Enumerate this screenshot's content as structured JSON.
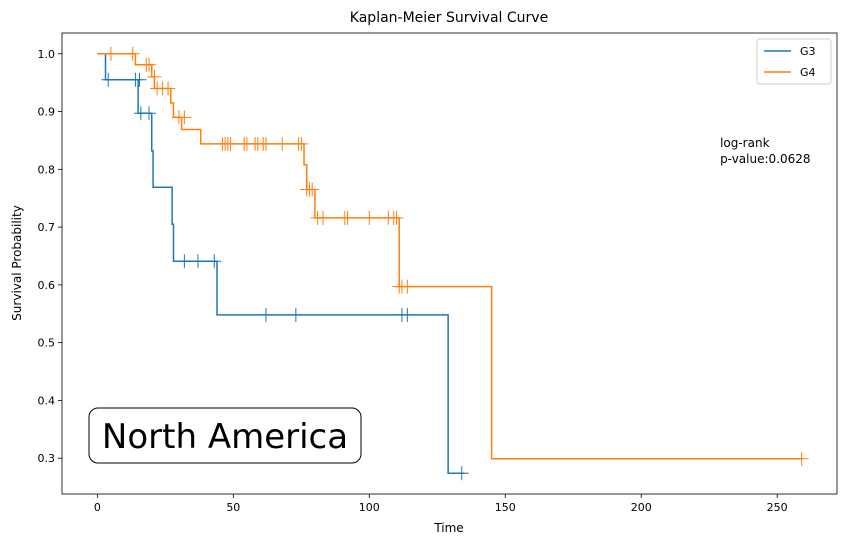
{
  "chart_data": {
    "type": "line",
    "title": "Kaplan-Meier Survival Curve",
    "xlabel": "Time",
    "ylabel": "Survival Probability",
    "xlim": [
      -13,
      272
    ],
    "ylim": [
      0.238,
      1.036
    ],
    "xticks": [
      {
        "value": 0,
        "label": "0"
      },
      {
        "value": 50,
        "label": "50"
      },
      {
        "value": 100,
        "label": "100"
      },
      {
        "value": 150,
        "label": "150"
      },
      {
        "value": 200,
        "label": "200"
      },
      {
        "value": 250,
        "label": "250"
      }
    ],
    "yticks": [
      {
        "value": 0.3,
        "label": "0.3"
      },
      {
        "value": 0.4,
        "label": "0.4"
      },
      {
        "value": 0.5,
        "label": "0.5"
      },
      {
        "value": 0.6,
        "label": "0.6"
      },
      {
        "value": 0.7,
        "label": "0.7"
      },
      {
        "value": 0.8,
        "label": "0.8"
      },
      {
        "value": 0.9,
        "label": "0.9"
      },
      {
        "value": 1.0,
        "label": "1.0"
      }
    ],
    "legend_position": "top-right",
    "grid": false,
    "series": [
      {
        "name": "G3",
        "color": "#1f77b4",
        "steps": [
          [
            0,
            1.0
          ],
          [
            3,
            0.955
          ],
          [
            15,
            0.897
          ],
          [
            20,
            0.832
          ],
          [
            20.5,
            0.769
          ],
          [
            27.5,
            0.705
          ],
          [
            28,
            0.641
          ],
          [
            44,
            0.548
          ],
          [
            129,
            0.274
          ],
          [
            135,
            0.274
          ]
        ],
        "censored": [
          [
            4,
            0.955
          ],
          [
            14,
            0.955
          ],
          [
            15.5,
            0.955
          ],
          [
            16,
            0.897
          ],
          [
            19,
            0.897
          ],
          [
            32,
            0.641
          ],
          [
            37,
            0.641
          ],
          [
            43,
            0.641
          ],
          [
            62,
            0.548
          ],
          [
            73,
            0.548
          ],
          [
            112,
            0.548
          ],
          [
            114,
            0.548
          ],
          [
            134,
            0.274
          ]
        ]
      },
      {
        "name": "G4",
        "color": "#ff7f0e",
        "steps": [
          [
            0,
            1.0
          ],
          [
            14,
            0.981
          ],
          [
            20,
            0.96
          ],
          [
            21,
            0.94
          ],
          [
            27,
            0.915
          ],
          [
            28,
            0.89
          ],
          [
            31,
            0.869
          ],
          [
            38,
            0.844
          ],
          [
            76,
            0.808
          ],
          [
            77,
            0.765
          ],
          [
            80,
            0.716
          ],
          [
            111,
            0.597
          ],
          [
            145,
            0.299
          ],
          [
            259,
            0.299
          ]
        ],
        "censored": [
          [
            5,
            1.0
          ],
          [
            13,
            1.0
          ],
          [
            18,
            0.981
          ],
          [
            19,
            0.981
          ],
          [
            21,
            0.96
          ],
          [
            22,
            0.94
          ],
          [
            24,
            0.94
          ],
          [
            26,
            0.94
          ],
          [
            30,
            0.89
          ],
          [
            32,
            0.89
          ],
          [
            46,
            0.844
          ],
          [
            47,
            0.844
          ],
          [
            48,
            0.844
          ],
          [
            49,
            0.844
          ],
          [
            54,
            0.844
          ],
          [
            55,
            0.844
          ],
          [
            58,
            0.844
          ],
          [
            59,
            0.844
          ],
          [
            61,
            0.844
          ],
          [
            62,
            0.844
          ],
          [
            68,
            0.844
          ],
          [
            74,
            0.844
          ],
          [
            75,
            0.844
          ],
          [
            77,
            0.765
          ],
          [
            78,
            0.765
          ],
          [
            79,
            0.765
          ],
          [
            81,
            0.716
          ],
          [
            83,
            0.716
          ],
          [
            91,
            0.716
          ],
          [
            92,
            0.716
          ],
          [
            100,
            0.716
          ],
          [
            107,
            0.716
          ],
          [
            109,
            0.716
          ],
          [
            110,
            0.716
          ],
          [
            111,
            0.597
          ],
          [
            112,
            0.597
          ],
          [
            114,
            0.597
          ],
          [
            259,
            0.299
          ]
        ]
      }
    ],
    "annotations": [
      {
        "lines": [
          "log-rank",
          "p-value:0.0628"
        ],
        "x": 229,
        "y": 0.825
      }
    ],
    "text_box": {
      "text": "North America",
      "color": "#0000ee"
    }
  }
}
